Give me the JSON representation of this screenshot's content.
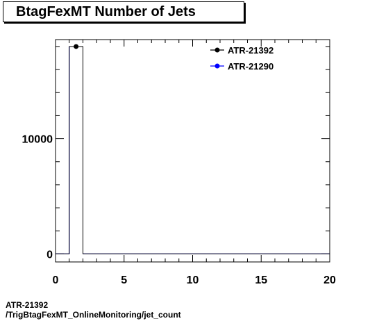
{
  "title": "BtagFexMT Number of Jets",
  "footer": {
    "line1": "ATR-21392",
    "line2": "/TrigBtagFexMT_OnlineMonitoring/jet_count"
  },
  "chart_data": {
    "type": "bar",
    "title": "BtagFexMT Number of Jets",
    "xlabel": "",
    "ylabel": "",
    "xlim": [
      0,
      20
    ],
    "ylim": [
      -700,
      18600
    ],
    "x_ticks": [
      0,
      5,
      10,
      15,
      20
    ],
    "y_ticks": [
      0,
      10000
    ],
    "grid": false,
    "legend_position": "top-right",
    "bin_edges": [
      1,
      2
    ],
    "series": [
      {
        "name": "ATR-21392",
        "color": "#000000",
        "values": [
          18000
        ]
      },
      {
        "name": "ATR-21290",
        "color": "#0000ff",
        "values": [
          18000
        ]
      }
    ]
  }
}
